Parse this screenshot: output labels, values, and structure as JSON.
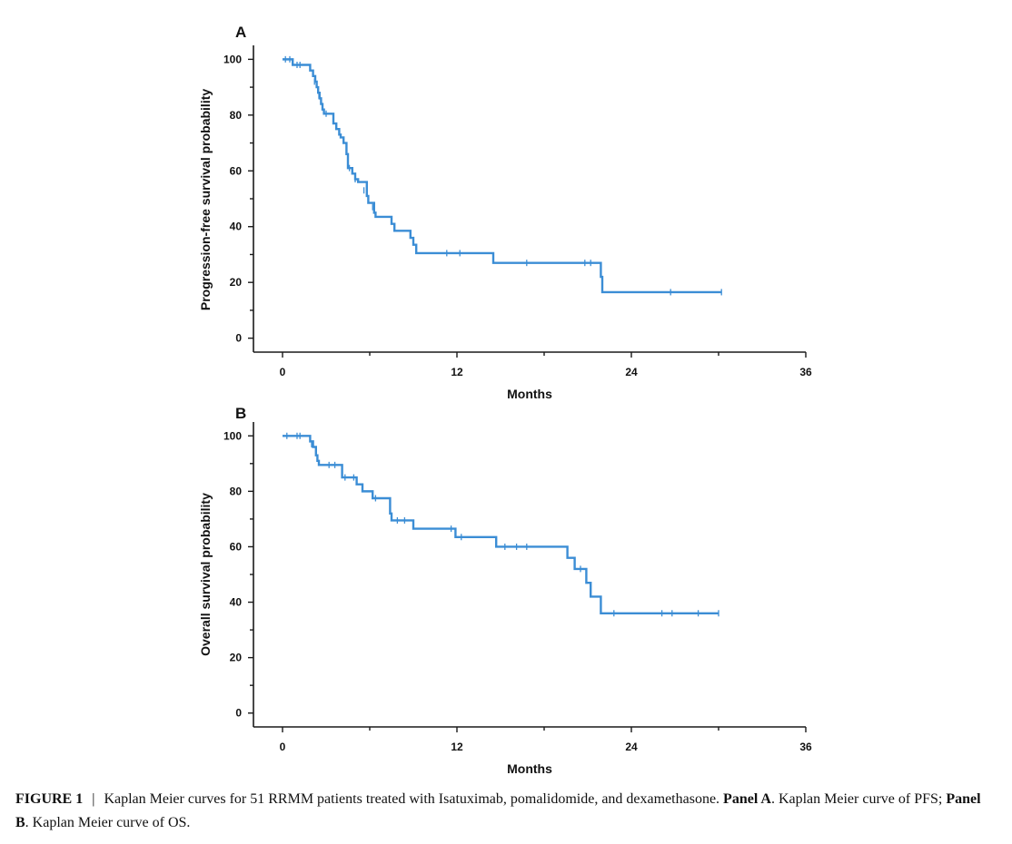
{
  "colors": {
    "curve": "#3b8dd5",
    "axis": "#1a1a1a"
  },
  "chart_data": [
    {
      "type": "line",
      "panel": "A",
      "xlabel": "Months",
      "ylabel": "Progression-free survival probability",
      "xlim": [
        -2,
        36
      ],
      "ylim": [
        -5,
        105
      ],
      "xticks": [
        0,
        12,
        24,
        36
      ],
      "yticks": [
        0,
        20,
        40,
        60,
        80,
        100
      ],
      "grid": false,
      "legend": "none",
      "series": [
        {
          "step": [
            [
              0.0,
              100
            ],
            [
              0.7,
              98
            ],
            [
              1.9,
              96
            ],
            [
              2.1,
              94
            ],
            [
              2.25,
              92
            ],
            [
              2.35,
              90
            ],
            [
              2.45,
              88
            ],
            [
              2.55,
              86
            ],
            [
              2.65,
              84
            ],
            [
              2.75,
              82
            ],
            [
              2.85,
              80.5
            ],
            [
              3.5,
              77
            ],
            [
              3.7,
              75
            ],
            [
              3.9,
              73
            ],
            [
              4.0,
              72
            ],
            [
              4.2,
              70
            ],
            [
              4.4,
              66
            ],
            [
              4.5,
              61
            ],
            [
              4.8,
              59
            ],
            [
              5.0,
              57
            ],
            [
              5.2,
              56
            ],
            [
              5.8,
              51
            ],
            [
              5.9,
              48.5
            ],
            [
              6.3,
              45
            ],
            [
              6.4,
              43.5
            ],
            [
              7.5,
              41
            ],
            [
              7.7,
              38.5
            ],
            [
              8.8,
              36
            ],
            [
              9.0,
              33.5
            ],
            [
              9.2,
              30.5
            ],
            [
              14.5,
              27
            ],
            [
              21.9,
              22
            ],
            [
              22.0,
              16.5
            ],
            [
              30.2,
              16.5
            ]
          ],
          "censored": [
            [
              0.2,
              100
            ],
            [
              0.5,
              100
            ],
            [
              1.0,
              98
            ],
            [
              1.2,
              98
            ],
            [
              2.2,
              92
            ],
            [
              2.5,
              87
            ],
            [
              3.0,
              80.5
            ],
            [
              4.6,
              61
            ],
            [
              5.0,
              57
            ],
            [
              5.6,
              53
            ],
            [
              6.2,
              47
            ],
            [
              11.3,
              30.5
            ],
            [
              12.2,
              30.5
            ],
            [
              16.8,
              27
            ],
            [
              20.8,
              27
            ],
            [
              21.2,
              27
            ],
            [
              26.7,
              16.5
            ],
            [
              30.2,
              16.5
            ]
          ]
        }
      ]
    },
    {
      "type": "line",
      "panel": "B",
      "xlabel": "Months",
      "ylabel": "Overall survival probability",
      "xlim": [
        -2,
        36
      ],
      "ylim": [
        -5,
        105
      ],
      "xticks": [
        0,
        12,
        24,
        36
      ],
      "yticks": [
        0,
        20,
        40,
        60,
        80,
        100
      ],
      "grid": false,
      "legend": "none",
      "series": [
        {
          "step": [
            [
              0.0,
              100
            ],
            [
              1.9,
              98
            ],
            [
              2.1,
              96
            ],
            [
              2.3,
              93
            ],
            [
              2.4,
              91
            ],
            [
              2.5,
              89.5
            ],
            [
              4.1,
              85
            ],
            [
              5.1,
              82.5
            ],
            [
              5.5,
              80
            ],
            [
              6.2,
              77.5
            ],
            [
              7.4,
              72
            ],
            [
              7.5,
              69.5
            ],
            [
              9.0,
              66.5
            ],
            [
              11.9,
              63.5
            ],
            [
              14.7,
              60
            ],
            [
              19.6,
              56
            ],
            [
              20.1,
              52
            ],
            [
              20.9,
              47
            ],
            [
              21.2,
              42
            ],
            [
              21.9,
              36
            ],
            [
              30.0,
              36
            ]
          ],
          "censored": [
            [
              0.3,
              100
            ],
            [
              1.0,
              100
            ],
            [
              1.2,
              100
            ],
            [
              2.0,
              97
            ],
            [
              3.2,
              89.5
            ],
            [
              3.6,
              89.5
            ],
            [
              4.3,
              85
            ],
            [
              4.9,
              85
            ],
            [
              6.4,
              77.5
            ],
            [
              7.9,
              69.5
            ],
            [
              8.4,
              69.5
            ],
            [
              11.6,
              66.5
            ],
            [
              12.3,
              63.5
            ],
            [
              15.3,
              60
            ],
            [
              16.1,
              60
            ],
            [
              16.8,
              60
            ],
            [
              20.5,
              52
            ],
            [
              22.8,
              36
            ],
            [
              26.1,
              36
            ],
            [
              26.8,
              36
            ],
            [
              28.6,
              36
            ],
            [
              30.0,
              36
            ]
          ]
        }
      ]
    }
  ],
  "caption": {
    "label": "FIGURE 1",
    "separator": "|",
    "text1": "Kaplan Meier curves for 51 RRMM patients treated with Isatuximab, pomalidomide, and dexamethasone.",
    "panel_a_label": "Panel A",
    "text2": ". Kaplan Meier curve of PFS;",
    "panel_b_label": "Panel B",
    "text3": ". Kaplan Meier curve of OS."
  }
}
